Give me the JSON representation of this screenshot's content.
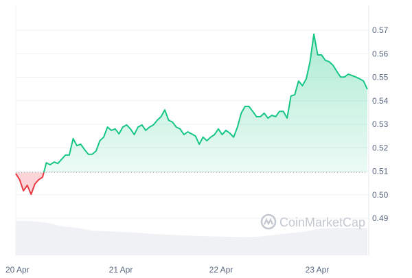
{
  "chart_data": {
    "type": "area",
    "title": "",
    "xlabel": "",
    "ylabel": "",
    "x_ticks": [
      "20 Apr",
      "21 Apr",
      "22 Apr",
      "23 Apr"
    ],
    "y_ticks": [
      "0.57",
      "0.56",
      "0.55",
      "0.54",
      "0.53",
      "0.52",
      "0.51",
      "0.50",
      "0.49"
    ],
    "ylim": [
      0.4865,
      0.5725
    ],
    "time_range": [
      "19 Apr 23:00",
      "23 Apr 12:00"
    ],
    "baseline": 0.5095,
    "grid": true,
    "colors": {
      "up": "#16c784",
      "down": "#ea3943",
      "volume": "#eff1f4",
      "grid": "#eef0f3",
      "axis_text": "#58667e"
    },
    "series": [
      {
        "values": [
          0.509,
          0.5064,
          0.5017,
          0.504,
          0.5002,
          0.5046,
          0.5064,
          0.5075,
          0.5136,
          0.5128,
          0.5139,
          0.5133,
          0.5151,
          0.5169,
          0.5169,
          0.5239,
          0.5209,
          0.5215,
          0.5192,
          0.5172,
          0.5172,
          0.5186,
          0.523,
          0.5245,
          0.5288,
          0.5274,
          0.528,
          0.5259,
          0.5288,
          0.5297,
          0.528,
          0.5256,
          0.5288,
          0.5297,
          0.5274,
          0.5288,
          0.5297,
          0.5317,
          0.5332,
          0.5361,
          0.5317,
          0.5309,
          0.5288,
          0.528,
          0.5256,
          0.5268,
          0.5259,
          0.525,
          0.5215,
          0.5245,
          0.523,
          0.5245,
          0.5256,
          0.528,
          0.5256,
          0.5274,
          0.5262,
          0.5245,
          0.5288,
          0.5347,
          0.5376,
          0.5376,
          0.5355,
          0.5332,
          0.5332,
          0.5347,
          0.5326,
          0.5338,
          0.5332,
          0.5355,
          0.5355,
          0.5326,
          0.542,
          0.5426,
          0.5484,
          0.5464,
          0.5493,
          0.5566,
          0.5683,
          0.5595,
          0.5595,
          0.5572,
          0.5566,
          0.5551,
          0.5525,
          0.5501,
          0.5501,
          0.5513,
          0.5507,
          0.5501,
          0.5493,
          0.5484,
          0.5449
        ]
      }
    ],
    "volume_relative": [
      1.0,
      1.0,
      0.95,
      0.85,
      0.8,
      0.72,
      0.7,
      0.68,
      0.66,
      0.62,
      0.6,
      0.58,
      0.56,
      0.55,
      0.54,
      0.53,
      0.55,
      0.6,
      0.65,
      0.7,
      0.78,
      0.8,
      0.8,
      0.8
    ]
  },
  "watermark": "CoinMarketCap"
}
